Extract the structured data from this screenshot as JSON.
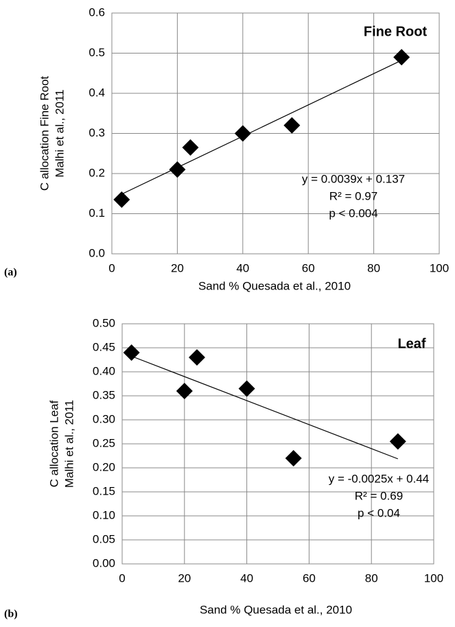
{
  "chart_data": [
    {
      "type": "scatter",
      "panel_label": "(a)",
      "title": "Fine Root",
      "xlabel": "Sand % Quesada et al., 2010",
      "ylabel": [
        "C  allocation Fine Root",
        "Malhi et al., 2011"
      ],
      "x": [
        3,
        20,
        24,
        40,
        55,
        88.5
      ],
      "series": [
        {
          "color": "#000000",
          "values": [
            0.135,
            0.21,
            0.265,
            0.3,
            0.32,
            0.49
          ]
        }
      ],
      "trendline": {
        "slope": 0.0039,
        "intercept": 0.137,
        "color": "#000000"
      },
      "annotations": [
        "y = 0.0039x + 0.137",
        "R² = 0.97",
        "p < 0.004"
      ],
      "xlim": [
        0,
        100
      ],
      "xticks": [
        0,
        20,
        40,
        60,
        80,
        100
      ],
      "ylim": [
        0,
        0.6
      ],
      "yticks": [
        {
          "value": 0,
          "label": "0.0"
        },
        0.1,
        0.2,
        0.3,
        0.4,
        0.5,
        0.6
      ],
      "grid": true
    },
    {
      "type": "scatter",
      "panel_label": "(b)",
      "title": "Leaf",
      "xlabel": "Sand % Quesada et al., 2010",
      "ylabel": [
        "C  allocation Leaf",
        "Malhi et al., 2011"
      ],
      "x": [
        3,
        20,
        24,
        40,
        55,
        88.5
      ],
      "series": [
        {
          "color": "#000000",
          "values": [
            0.44,
            0.36,
            0.43,
            0.365,
            0.22,
            0.255
          ]
        }
      ],
      "trendline": {
        "slope": -0.0025,
        "intercept": 0.44,
        "color": "#000000"
      },
      "annotations": [
        "y = -0.0025x + 0.44",
        "R² = 0.69",
        "p < 0.04"
      ],
      "xlim": [
        0,
        100
      ],
      "xticks": [
        0,
        20,
        40,
        60,
        80,
        100
      ],
      "ylim": [
        0,
        0.5
      ],
      "yticks": [
        {
          "value": 0,
          "label": "0.00"
        },
        {
          "value": 0.05,
          "label": "0.05"
        },
        {
          "value": 0.1,
          "label": "0.10"
        },
        {
          "value": 0.15,
          "label": "0.15"
        },
        {
          "value": 0.2,
          "label": "0.20"
        },
        {
          "value": 0.25,
          "label": "0.25"
        },
        {
          "value": 0.3,
          "label": "0.30"
        },
        {
          "value": 0.35,
          "label": "0.35"
        },
        {
          "value": 0.4,
          "label": "0.40"
        },
        {
          "value": 0.45,
          "label": "0.45"
        },
        {
          "value": 0.5,
          "label": "0.50"
        }
      ],
      "grid": true
    }
  ]
}
